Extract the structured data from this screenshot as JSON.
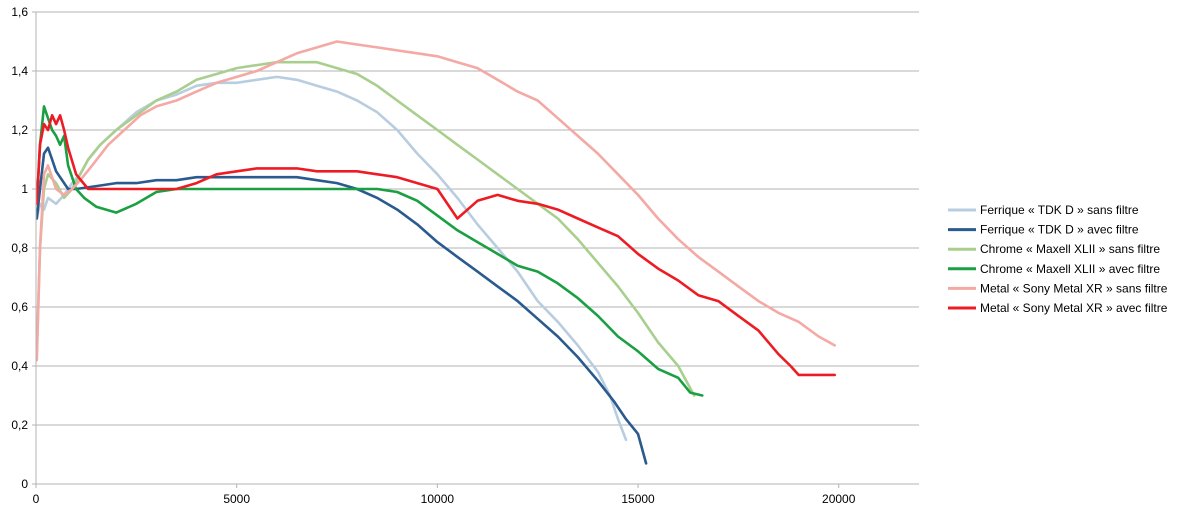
{
  "chart_data": {
    "type": "line",
    "title": "",
    "xlabel": "",
    "ylabel": "",
    "xlim": [
      0,
      22000
    ],
    "ylim": [
      0,
      1.6
    ],
    "x_ticks": [
      0,
      5000,
      10000,
      15000,
      20000
    ],
    "x_tick_labels": [
      "0",
      "5000",
      "10000",
      "15000",
      "20000"
    ],
    "y_ticks": [
      0,
      0.2,
      0.4,
      0.6,
      0.8,
      1,
      1.2,
      1.4,
      1.6
    ],
    "y_tick_labels": [
      "0",
      "0,2",
      "0,4",
      "0,6",
      "0,8",
      "1",
      "1,2",
      "1,4",
      "1,6"
    ],
    "grid": "horizontal",
    "legend_position": "right",
    "series": [
      {
        "name": "Ferrique « TDK D » sans filtre",
        "color": "#b9cde0",
        "points": [
          [
            20,
            0.9
          ],
          [
            100,
            0.95
          ],
          [
            200,
            0.93
          ],
          [
            300,
            0.97
          ],
          [
            500,
            0.95
          ],
          [
            700,
            0.98
          ],
          [
            900,
            1.02
          ],
          [
            1100,
            1.05
          ],
          [
            1300,
            1.1
          ],
          [
            1600,
            1.15
          ],
          [
            2000,
            1.2
          ],
          [
            2500,
            1.26
          ],
          [
            3000,
            1.3
          ],
          [
            3500,
            1.32
          ],
          [
            4000,
            1.35
          ],
          [
            4500,
            1.36
          ],
          [
            5000,
            1.36
          ],
          [
            5500,
            1.37
          ],
          [
            6000,
            1.38
          ],
          [
            6500,
            1.37
          ],
          [
            7000,
            1.35
          ],
          [
            7500,
            1.33
          ],
          [
            8000,
            1.3
          ],
          [
            8500,
            1.26
          ],
          [
            9000,
            1.2
          ],
          [
            9500,
            1.12
          ],
          [
            10000,
            1.05
          ],
          [
            10500,
            0.97
          ],
          [
            11000,
            0.88
          ],
          [
            11500,
            0.8
          ],
          [
            12000,
            0.72
          ],
          [
            12500,
            0.62
          ],
          [
            13000,
            0.55
          ],
          [
            13500,
            0.47
          ],
          [
            14000,
            0.38
          ],
          [
            14300,
            0.3
          ],
          [
            14500,
            0.22
          ],
          [
            14700,
            0.15
          ]
        ]
      },
      {
        "name": "Ferrique « TDK D » avec filtre",
        "color": "#2a5a8e",
        "points": [
          [
            20,
            0.9
          ],
          [
            100,
            1.0
          ],
          [
            200,
            1.12
          ],
          [
            300,
            1.14
          ],
          [
            400,
            1.1
          ],
          [
            500,
            1.06
          ],
          [
            600,
            1.04
          ],
          [
            800,
            1.0
          ],
          [
            1000,
            1.0
          ],
          [
            1500,
            1.01
          ],
          [
            2000,
            1.02
          ],
          [
            2500,
            1.02
          ],
          [
            3000,
            1.03
          ],
          [
            3500,
            1.03
          ],
          [
            4000,
            1.04
          ],
          [
            4500,
            1.04
          ],
          [
            5000,
            1.04
          ],
          [
            5500,
            1.04
          ],
          [
            6000,
            1.04
          ],
          [
            6500,
            1.04
          ],
          [
            7000,
            1.03
          ],
          [
            7500,
            1.02
          ],
          [
            8000,
            1.0
          ],
          [
            8500,
            0.97
          ],
          [
            9000,
            0.93
          ],
          [
            9500,
            0.88
          ],
          [
            10000,
            0.82
          ],
          [
            10500,
            0.77
          ],
          [
            11000,
            0.72
          ],
          [
            11500,
            0.67
          ],
          [
            12000,
            0.62
          ],
          [
            12500,
            0.56
          ],
          [
            13000,
            0.5
          ],
          [
            13500,
            0.43
          ],
          [
            14000,
            0.35
          ],
          [
            14400,
            0.28
          ],
          [
            14700,
            0.22
          ],
          [
            15000,
            0.17
          ],
          [
            15200,
            0.07
          ]
        ]
      },
      {
        "name": "Chrome « Maxell XLII » sans filtre",
        "color": "#a9cf8e",
        "points": [
          [
            20,
            0.45
          ],
          [
            100,
            0.8
          ],
          [
            200,
            1.0
          ],
          [
            300,
            1.05
          ],
          [
            500,
            1.02
          ],
          [
            700,
            0.97
          ],
          [
            900,
            1.0
          ],
          [
            1100,
            1.05
          ],
          [
            1300,
            1.1
          ],
          [
            1600,
            1.15
          ],
          [
            2000,
            1.2
          ],
          [
            2500,
            1.25
          ],
          [
            3000,
            1.3
          ],
          [
            3500,
            1.33
          ],
          [
            4000,
            1.37
          ],
          [
            4500,
            1.39
          ],
          [
            5000,
            1.41
          ],
          [
            5500,
            1.42
          ],
          [
            6000,
            1.43
          ],
          [
            6500,
            1.43
          ],
          [
            7000,
            1.43
          ],
          [
            7500,
            1.41
          ],
          [
            8000,
            1.39
          ],
          [
            8500,
            1.35
          ],
          [
            9000,
            1.3
          ],
          [
            9500,
            1.25
          ],
          [
            10000,
            1.2
          ],
          [
            10500,
            1.15
          ],
          [
            11000,
            1.1
          ],
          [
            11500,
            1.05
          ],
          [
            12000,
            1.0
          ],
          [
            12500,
            0.95
          ],
          [
            13000,
            0.9
          ],
          [
            13500,
            0.83
          ],
          [
            14000,
            0.75
          ],
          [
            14500,
            0.67
          ],
          [
            15000,
            0.58
          ],
          [
            15500,
            0.48
          ],
          [
            16000,
            0.4
          ],
          [
            16400,
            0.3
          ]
        ]
      },
      {
        "name": "Chrome « Maxell XLII » avec filtre",
        "color": "#1aa043",
        "points": [
          [
            20,
            0.95
          ],
          [
            100,
            1.15
          ],
          [
            200,
            1.28
          ],
          [
            300,
            1.24
          ],
          [
            400,
            1.2
          ],
          [
            500,
            1.18
          ],
          [
            600,
            1.15
          ],
          [
            700,
            1.18
          ],
          [
            800,
            1.08
          ],
          [
            1000,
            1.0
          ],
          [
            1200,
            0.97
          ],
          [
            1500,
            0.94
          ],
          [
            2000,
            0.92
          ],
          [
            2500,
            0.95
          ],
          [
            3000,
            0.99
          ],
          [
            3500,
            1.0
          ],
          [
            4000,
            1.0
          ],
          [
            4500,
            1.0
          ],
          [
            5000,
            1.0
          ],
          [
            5500,
            1.0
          ],
          [
            6000,
            1.0
          ],
          [
            6500,
            1.0
          ],
          [
            7000,
            1.0
          ],
          [
            7500,
            1.0
          ],
          [
            8000,
            1.0
          ],
          [
            8500,
            1.0
          ],
          [
            9000,
            0.99
          ],
          [
            9500,
            0.96
          ],
          [
            10000,
            0.91
          ],
          [
            10500,
            0.86
          ],
          [
            11000,
            0.82
          ],
          [
            11500,
            0.78
          ],
          [
            12000,
            0.74
          ],
          [
            12500,
            0.72
          ],
          [
            13000,
            0.68
          ],
          [
            13500,
            0.63
          ],
          [
            14000,
            0.57
          ],
          [
            14500,
            0.5
          ],
          [
            15000,
            0.45
          ],
          [
            15500,
            0.39
          ],
          [
            16000,
            0.36
          ],
          [
            16300,
            0.31
          ],
          [
            16600,
            0.3
          ]
        ]
      },
      {
        "name": "Metal « Sony Metal XR » sans filtre",
        "color": "#f4a9a5",
        "points": [
          [
            20,
            0.42
          ],
          [
            100,
            0.8
          ],
          [
            200,
            1.05
          ],
          [
            300,
            1.08
          ],
          [
            500,
            1.0
          ],
          [
            700,
            0.98
          ],
          [
            900,
            1.0
          ],
          [
            1100,
            1.03
          ],
          [
            1400,
            1.08
          ],
          [
            1800,
            1.15
          ],
          [
            2200,
            1.2
          ],
          [
            2600,
            1.25
          ],
          [
            3000,
            1.28
          ],
          [
            3500,
            1.3
          ],
          [
            4000,
            1.33
          ],
          [
            4500,
            1.36
          ],
          [
            5000,
            1.38
          ],
          [
            5500,
            1.4
          ],
          [
            6000,
            1.43
          ],
          [
            6500,
            1.46
          ],
          [
            7000,
            1.48
          ],
          [
            7500,
            1.5
          ],
          [
            8000,
            1.49
          ],
          [
            8500,
            1.48
          ],
          [
            9000,
            1.47
          ],
          [
            9500,
            1.46
          ],
          [
            10000,
            1.45
          ],
          [
            10500,
            1.43
          ],
          [
            11000,
            1.41
          ],
          [
            11500,
            1.37
          ],
          [
            12000,
            1.33
          ],
          [
            12500,
            1.3
          ],
          [
            13000,
            1.24
          ],
          [
            13500,
            1.18
          ],
          [
            14000,
            1.12
          ],
          [
            14500,
            1.05
          ],
          [
            15000,
            0.98
          ],
          [
            15500,
            0.9
          ],
          [
            16000,
            0.83
          ],
          [
            16500,
            0.77
          ],
          [
            17000,
            0.72
          ],
          [
            17500,
            0.67
          ],
          [
            18000,
            0.62
          ],
          [
            18500,
            0.58
          ],
          [
            19000,
            0.55
          ],
          [
            19500,
            0.5
          ],
          [
            19900,
            0.47
          ]
        ]
      },
      {
        "name": "Metal « Sony Metal XR » avec filtre",
        "color": "#ed1c24",
        "points": [
          [
            20,
            0.95
          ],
          [
            100,
            1.15
          ],
          [
            200,
            1.22
          ],
          [
            300,
            1.2
          ],
          [
            400,
            1.25
          ],
          [
            500,
            1.22
          ],
          [
            600,
            1.25
          ],
          [
            700,
            1.2
          ],
          [
            800,
            1.14
          ],
          [
            1000,
            1.05
          ],
          [
            1300,
            1.0
          ],
          [
            1600,
            1.0
          ],
          [
            2000,
            1.0
          ],
          [
            2500,
            1.0
          ],
          [
            3000,
            1.0
          ],
          [
            3500,
            1.0
          ],
          [
            4000,
            1.02
          ],
          [
            4500,
            1.05
          ],
          [
            5000,
            1.06
          ],
          [
            5500,
            1.07
          ],
          [
            6000,
            1.07
          ],
          [
            6500,
            1.07
          ],
          [
            7000,
            1.06
          ],
          [
            7500,
            1.06
          ],
          [
            8000,
            1.06
          ],
          [
            8500,
            1.05
          ],
          [
            9000,
            1.04
          ],
          [
            9500,
            1.02
          ],
          [
            10000,
            1.0
          ],
          [
            10500,
            0.9
          ],
          [
            11000,
            0.96
          ],
          [
            11500,
            0.98
          ],
          [
            12000,
            0.96
          ],
          [
            12500,
            0.95
          ],
          [
            13000,
            0.93
          ],
          [
            13500,
            0.9
          ],
          [
            14000,
            0.87
          ],
          [
            14500,
            0.84
          ],
          [
            15000,
            0.78
          ],
          [
            15500,
            0.73
          ],
          [
            16000,
            0.69
          ],
          [
            16500,
            0.64
          ],
          [
            17000,
            0.62
          ],
          [
            17500,
            0.57
          ],
          [
            18000,
            0.52
          ],
          [
            18500,
            0.44
          ],
          [
            18800,
            0.4
          ],
          [
            19000,
            0.37
          ],
          [
            19900,
            0.37
          ]
        ]
      }
    ]
  }
}
